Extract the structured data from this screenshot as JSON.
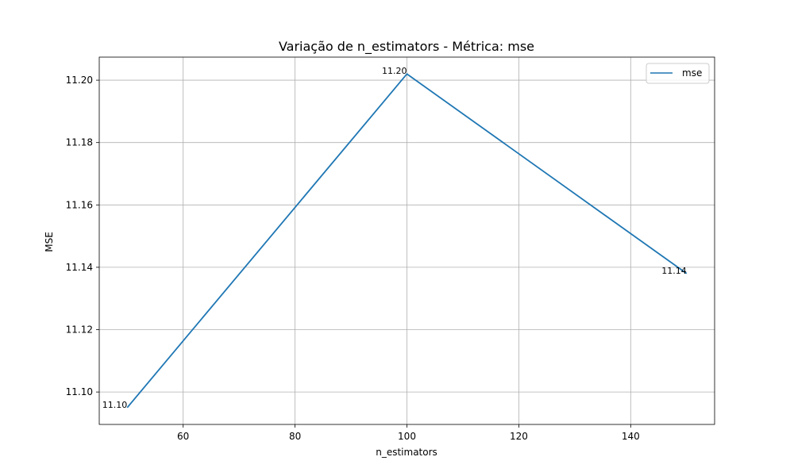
{
  "chart_data": {
    "type": "line",
    "title": "Variação de n_estimators - Métrica: mse",
    "xlabel": "n_estimators",
    "ylabel": "MSE",
    "x": [
      50,
      100,
      150
    ],
    "series": [
      {
        "name": "mse",
        "values": [
          11.095,
          11.202,
          11.138
        ],
        "labels": [
          "11.10",
          "11.20",
          "11.14"
        ]
      }
    ],
    "xlim": [
      45,
      155
    ],
    "ylim": [
      11.0896,
      11.2074
    ],
    "xticks": [
      60,
      80,
      100,
      120,
      140
    ],
    "xtick_labels": [
      "60",
      "80",
      "100",
      "120",
      "140"
    ],
    "yticks": [
      11.1,
      11.12,
      11.14,
      11.16,
      11.18,
      11.2
    ],
    "ytick_labels": [
      "11.10",
      "11.12",
      "11.14",
      "11.16",
      "11.18",
      "11.20"
    ],
    "grid": true,
    "legend_position": "top-right",
    "colors": {
      "line": "#1f77b4",
      "grid": "#b0b0b0"
    }
  }
}
